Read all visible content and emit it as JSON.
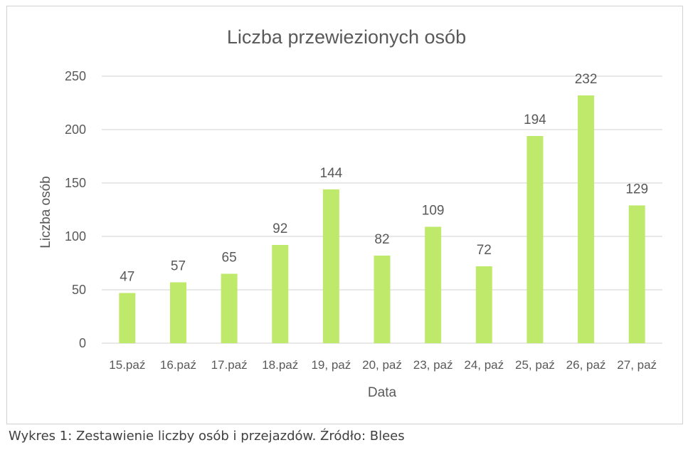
{
  "chart_data": {
    "type": "bar",
    "title": "Liczba przewiezionych osób",
    "xlabel": "Data",
    "ylabel": "Liczba osób",
    "categories": [
      "15.paź",
      "16.paź",
      "17.paź",
      "18.paź",
      "19, paź",
      "20, paź",
      "23, paź",
      "24, paź",
      "25, paź",
      "26, paź",
      "27, paź"
    ],
    "values": [
      47,
      57,
      65,
      92,
      144,
      82,
      109,
      72,
      194,
      232,
      129
    ],
    "ylim": [
      0,
      250
    ],
    "yticks": [
      0,
      50,
      100,
      150,
      200,
      250
    ],
    "grid": true,
    "legend": "none",
    "bar_color": "#bfe96a",
    "grid_color": "#d9d9d9",
    "text_color": "#595959"
  },
  "caption": "Wykres 1: Zestawienie liczby osób i przejazdów. Źródło: Blees"
}
